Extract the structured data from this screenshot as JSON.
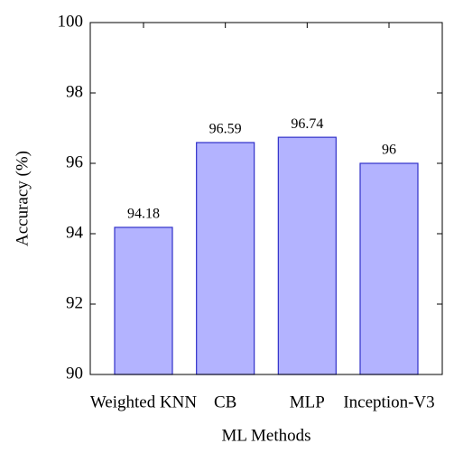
{
  "chart_data": {
    "type": "bar",
    "categories": [
      "Weighted KNN",
      "CB",
      "MLP",
      "Inception-V3"
    ],
    "values": [
      94.18,
      96.59,
      96.74,
      96
    ],
    "color": "#b3b3ff",
    "edge_color": "#3030c8",
    "xlabel": "ML Methods",
    "ylabel": "Accuracy (%)",
    "ylim": [
      90,
      100
    ],
    "yticks": [
      90,
      92,
      94,
      96,
      98,
      100
    ]
  }
}
